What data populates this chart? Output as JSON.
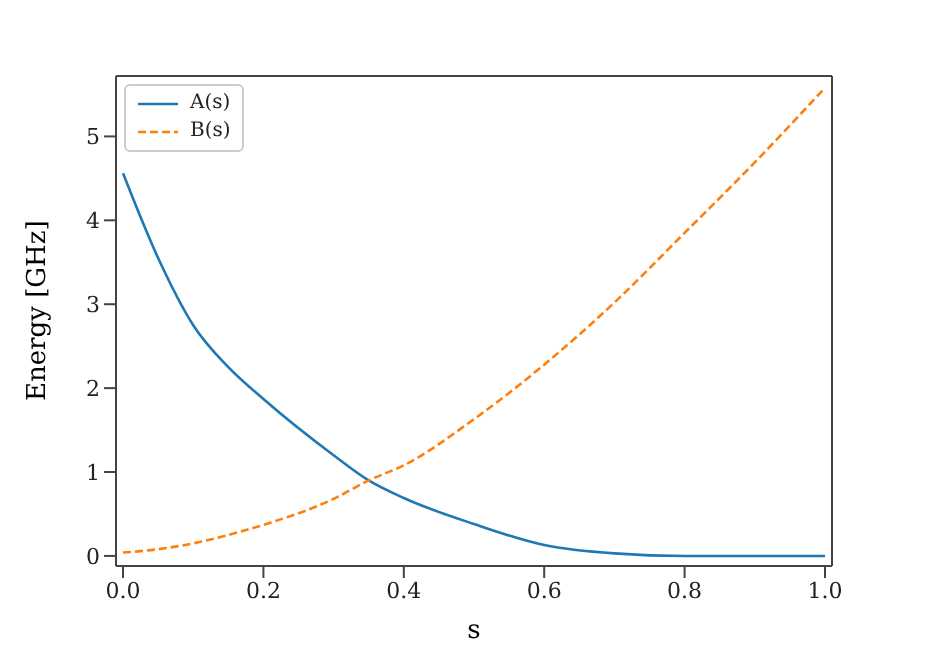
{
  "chart_data": {
    "type": "line",
    "xlabel": "s",
    "ylabel": "Energy [GHz]",
    "x": [
      0,
      0.05,
      0.1,
      0.15,
      0.2,
      0.3,
      0.35,
      0.4,
      0.5,
      0.6,
      0.7,
      0.8,
      0.9,
      1.0
    ],
    "series": [
      {
        "name": "A(s)",
        "color": "#1f77b4",
        "line_style": "solid",
        "values": [
          4.56,
          3.55,
          2.75,
          2.25,
          1.87,
          1.2,
          0.9,
          0.69,
          0.38,
          0.13,
          0.03,
          0.0,
          0.0,
          0.0
        ]
      },
      {
        "name": "B(s)",
        "color": "#ff7f0e",
        "line_style": "dashed",
        "values": [
          0.04,
          0.08,
          0.15,
          0.25,
          0.37,
          0.68,
          0.9,
          1.08,
          1.63,
          2.28,
          3.02,
          3.85,
          4.69,
          5.58
        ]
      }
    ],
    "xlim": [
      -0.01,
      1.01
    ],
    "xticks": [
      {
        "value": 0,
        "label": "0.0"
      },
      {
        "value": 0.2,
        "label": "0.2"
      },
      {
        "value": 0.4,
        "label": "0.4"
      },
      {
        "value": 0.6,
        "label": "0.6"
      },
      {
        "value": 0.8,
        "label": "0.8"
      },
      {
        "value": 1.0,
        "label": "1.0"
      }
    ],
    "ylim": [
      -0.12,
      5.72
    ],
    "yticks": [
      0,
      1,
      2,
      3,
      4,
      5
    ],
    "grid": false,
    "legend": "top left",
    "marker": "none"
  }
}
